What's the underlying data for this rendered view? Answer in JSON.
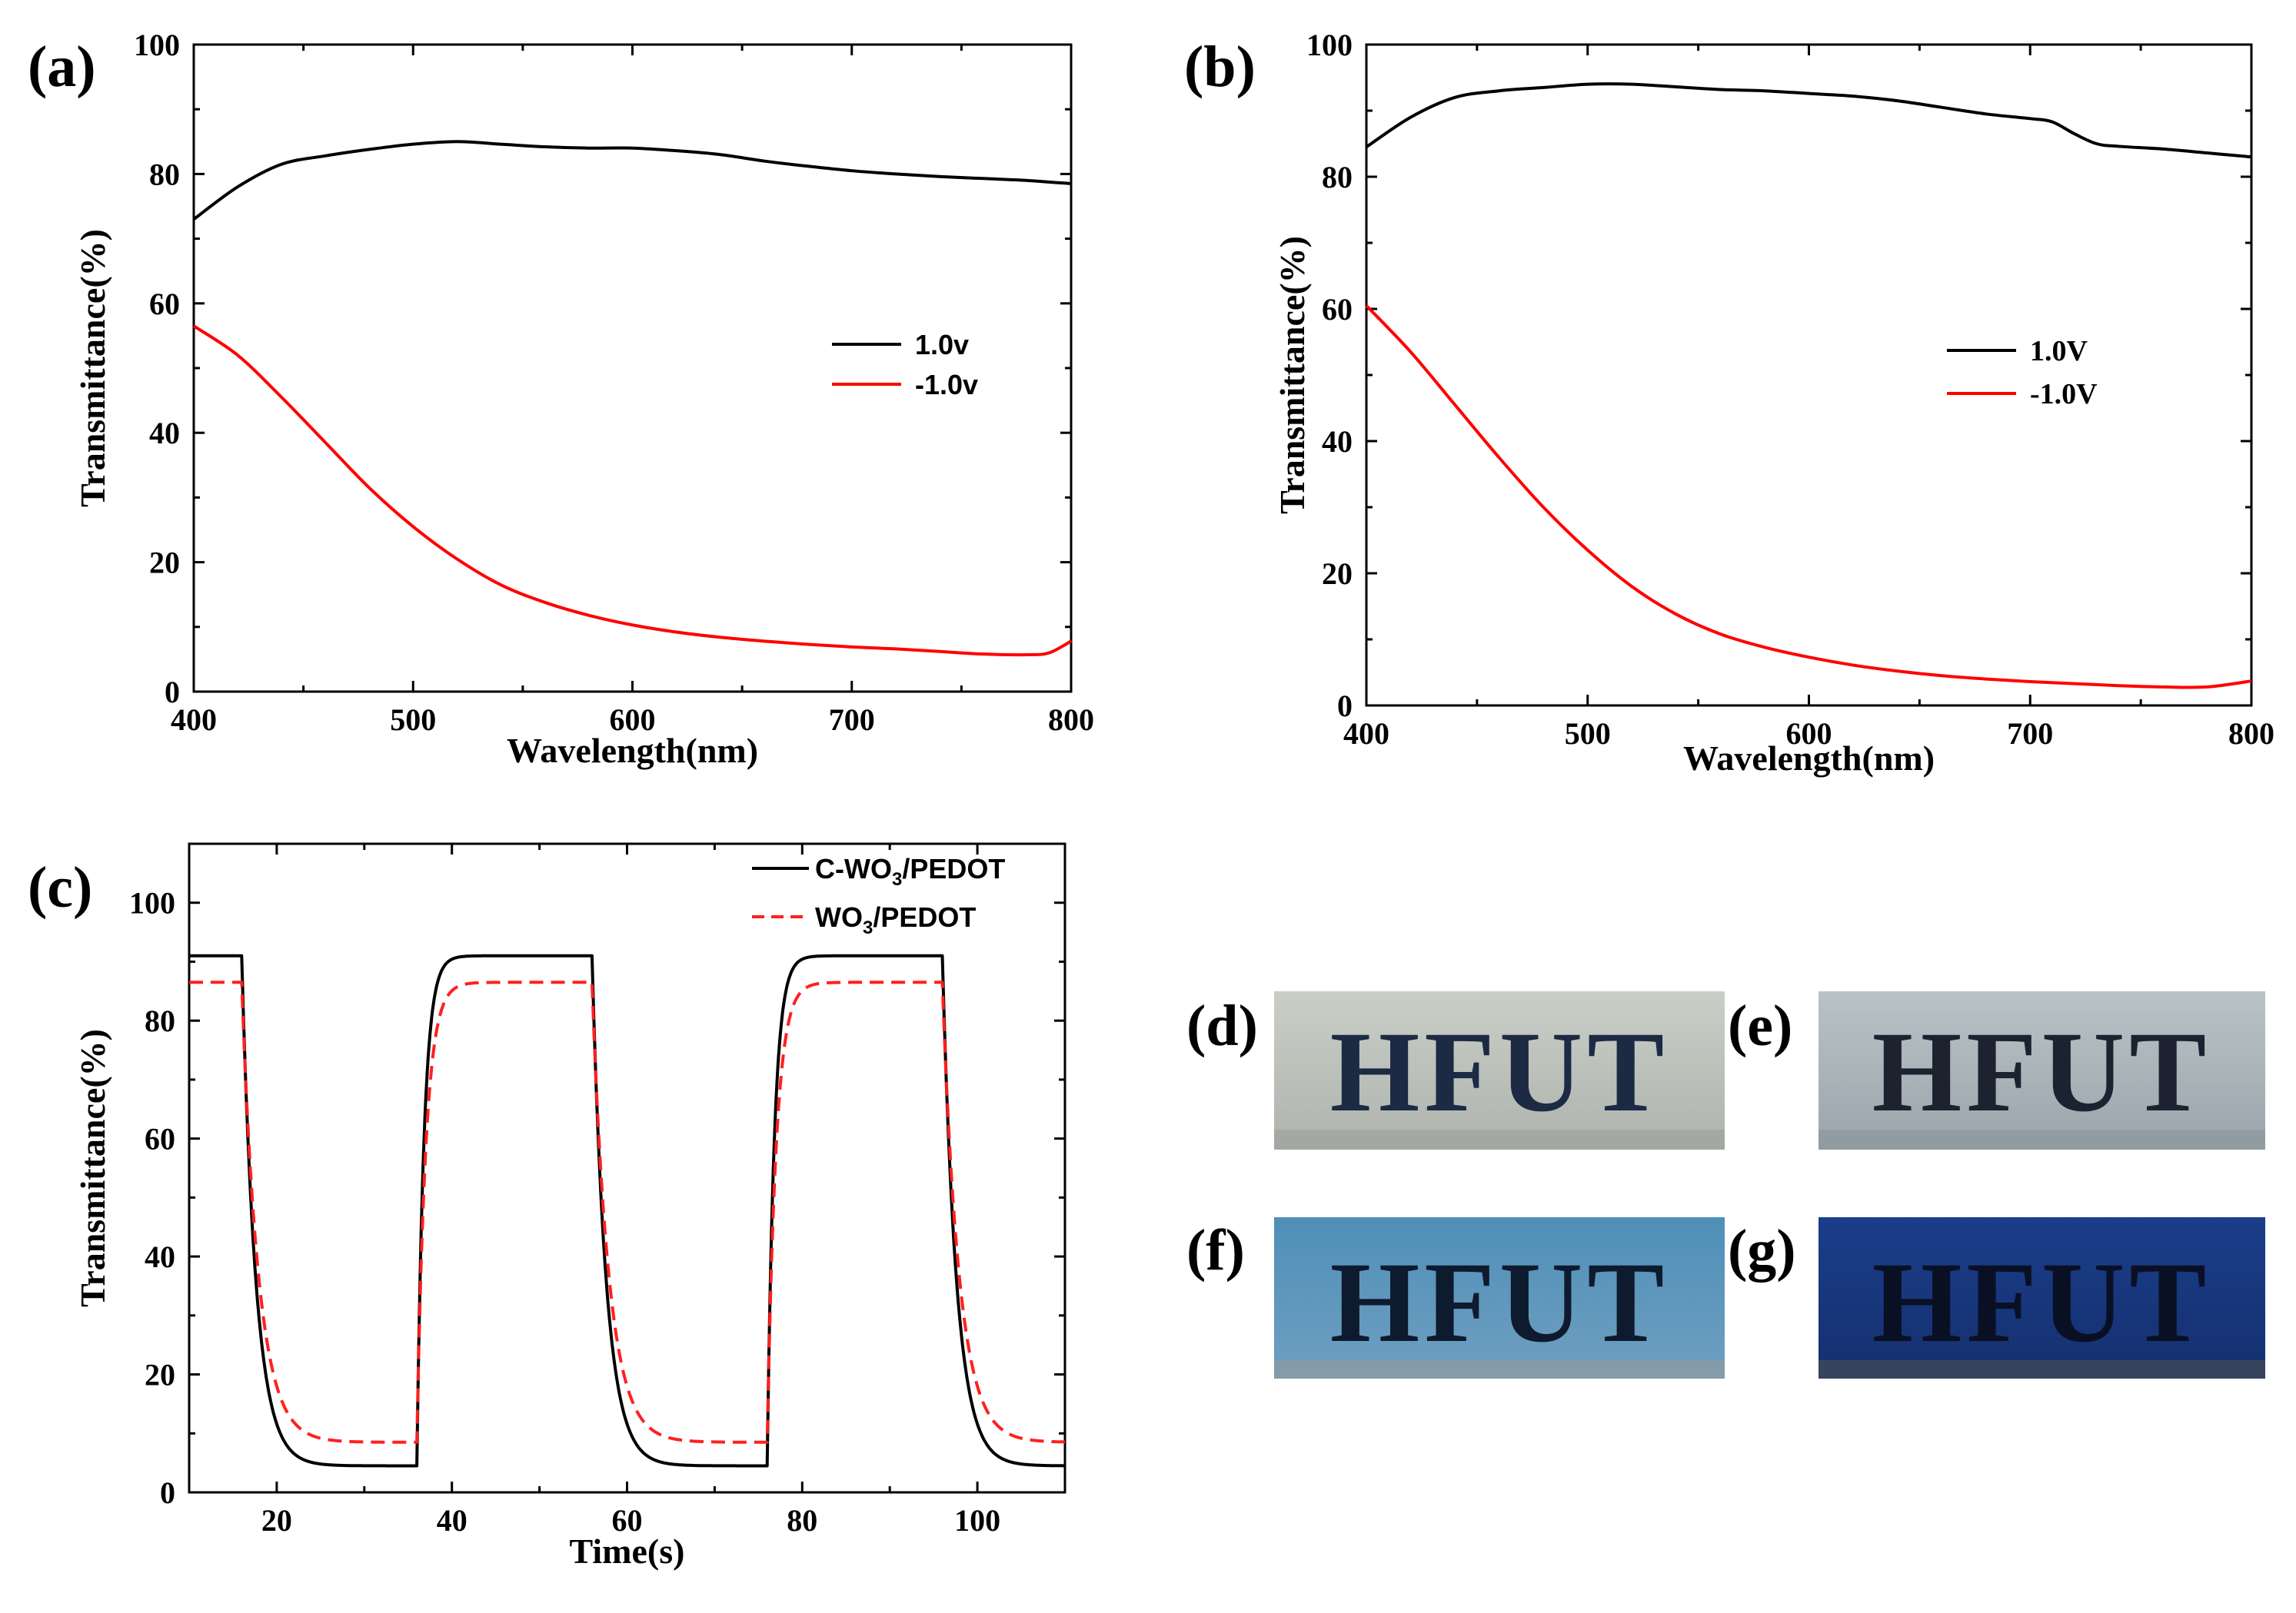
{
  "panels": {
    "a": "(a)",
    "b": "(b)",
    "c": "(c)",
    "d": "(d)",
    "e": "(e)",
    "f": "(f)",
    "g": "(g)"
  },
  "photo_text": "HFUT",
  "photo_colors": {
    "d": [
      "#c9cec7",
      "#aeb4ad"
    ],
    "e": [
      "#b9c2c6",
      "#9aa6ac"
    ],
    "f": [
      "#4f8fb8",
      "#6f9fc0"
    ],
    "g": [
      "#1b3d8a",
      "#14306e"
    ]
  },
  "chart_data": [
    {
      "id": "a",
      "type": "line",
      "xlabel": "Wavelength(nm)",
      "ylabel": "Transmittance(%)",
      "xlim": [
        400,
        800
      ],
      "ylim": [
        0,
        100
      ],
      "xticks": [
        400,
        500,
        600,
        700,
        800
      ],
      "yticks": [
        0,
        20,
        40,
        60,
        80,
        100
      ],
      "legend_position": "right-middle",
      "series": [
        {
          "name": "1.0v",
          "color": "#000000",
          "dash": "solid",
          "x": [
            400,
            420,
            440,
            460,
            480,
            500,
            520,
            540,
            560,
            580,
            600,
            620,
            640,
            660,
            680,
            700,
            720,
            740,
            760,
            780,
            800
          ],
          "y": [
            73,
            78,
            81.5,
            82.8,
            83.8,
            84.6,
            85,
            84.6,
            84.2,
            84,
            84,
            83.6,
            83,
            82,
            81.2,
            80.5,
            80,
            79.6,
            79.3,
            79,
            78.5
          ]
        },
        {
          "name": "-1.0v",
          "color": "#ff0000",
          "dash": "solid",
          "x": [
            400,
            420,
            440,
            460,
            480,
            500,
            520,
            540,
            560,
            580,
            600,
            620,
            640,
            660,
            680,
            700,
            720,
            740,
            760,
            780,
            790,
            800
          ],
          "y": [
            56.5,
            52,
            45.5,
            38.5,
            31.5,
            25.5,
            20.5,
            16.5,
            13.8,
            11.8,
            10.3,
            9.2,
            8.4,
            7.8,
            7.3,
            6.9,
            6.6,
            6.2,
            5.8,
            5.7,
            6.0,
            7.8
          ]
        }
      ]
    },
    {
      "id": "b",
      "type": "line",
      "xlabel": "Wavelength(nm)",
      "ylabel": "Transmittance(%)",
      "xlim": [
        400,
        800
      ],
      "ylim": [
        0,
        100
      ],
      "xticks": [
        400,
        500,
        600,
        700,
        800
      ],
      "yticks": [
        0,
        20,
        40,
        60,
        80,
        100
      ],
      "legend_position": "right-middle",
      "series": [
        {
          "name": "1.0V",
          "color": "#000000",
          "dash": "solid",
          "x": [
            400,
            420,
            440,
            460,
            480,
            500,
            520,
            540,
            560,
            580,
            600,
            620,
            640,
            660,
            680,
            700,
            710,
            720,
            730,
            740,
            760,
            780,
            800
          ],
          "y": [
            84.5,
            89,
            92,
            93,
            93.5,
            94,
            94,
            93.6,
            93.2,
            93,
            92.6,
            92.2,
            91.5,
            90.5,
            89.5,
            88.8,
            88.3,
            86.5,
            85,
            84.6,
            84.2,
            83.6,
            83
          ]
        },
        {
          "name": "-1.0V",
          "color": "#ff0000",
          "dash": "solid",
          "x": [
            400,
            420,
            440,
            460,
            480,
            500,
            520,
            540,
            560,
            580,
            600,
            620,
            640,
            660,
            680,
            700,
            720,
            740,
            760,
            780,
            800
          ],
          "y": [
            60.5,
            53.5,
            45.5,
            37.5,
            30,
            23.5,
            18,
            13.8,
            10.8,
            8.8,
            7.3,
            6.1,
            5.2,
            4.5,
            4.0,
            3.6,
            3.3,
            3.0,
            2.8,
            2.8,
            3.7
          ]
        }
      ]
    },
    {
      "id": "c",
      "type": "line",
      "xlabel": "Time(s)",
      "ylabel": "Transmittance(%)",
      "xlim": [
        10,
        110
      ],
      "ylim": [
        0,
        110
      ],
      "xticks": [
        20,
        40,
        60,
        80,
        100
      ],
      "yticks": [
        0,
        20,
        40,
        60,
        80,
        100
      ],
      "legend_position": "top-right",
      "series": [
        {
          "name_main": "C-WO",
          "name_sub": "3",
          "name_rest": "/PEDOT",
          "color": "#000000",
          "dash": "solid",
          "high": 91,
          "low": 4.5,
          "switch_to_low": [
            16,
            56,
            96
          ],
          "switch_to_high": [
            36,
            76
          ],
          "tau_down": 1.6,
          "tau_up": 0.8
        },
        {
          "name_main": "WO",
          "name_sub": "3",
          "name_rest": "/PEDOT",
          "color": "#ff2020",
          "dash": "dashed",
          "high": 86.5,
          "low": 8.5,
          "switch_to_low": [
            16,
            56,
            96
          ],
          "switch_to_high": [
            36,
            76
          ],
          "tau_down": 1.9,
          "tau_up": 1.0
        }
      ]
    }
  ]
}
